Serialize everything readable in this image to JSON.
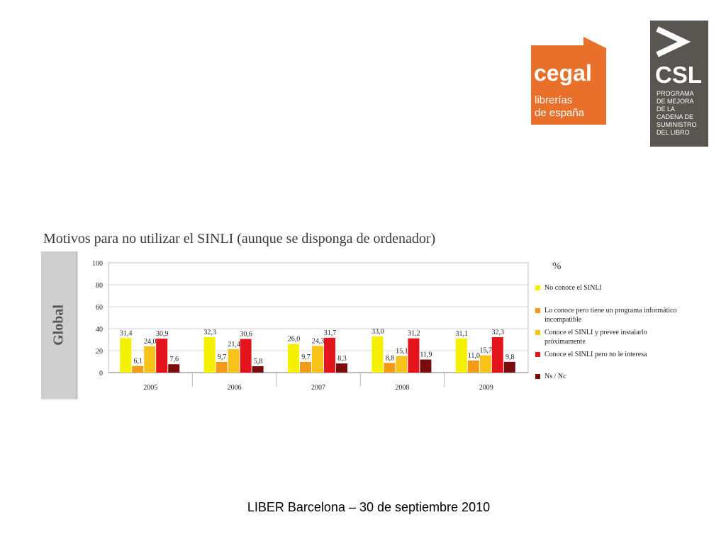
{
  "logos": {
    "cegal": {
      "title": "cegal",
      "line1": "librerías",
      "line2": "de españa",
      "color": "#e8702a"
    },
    "csl": {
      "title": "CSL",
      "lines": [
        "PROGRAMA",
        "DE MEJORA",
        "DE LA",
        "CADENA DE",
        "SUMINISTRO",
        "DEL LIBRO"
      ],
      "color": "#595550"
    }
  },
  "side_panel": {
    "label": "Global"
  },
  "footer": {
    "text": "LIBER Barcelona – 30 de septiembre 2010"
  },
  "chart_data": {
    "type": "bar",
    "title": "Motivos para no utilizar el SINLI (aunque se disponga de ordenador)",
    "unit_label": "%",
    "categories": [
      "2005",
      "2006",
      "2007",
      "2008",
      "2009"
    ],
    "ylim": [
      0,
      100
    ],
    "yticks": [
      0,
      20,
      40,
      60,
      80,
      100
    ],
    "grid": true,
    "legend_position": "right",
    "series": [
      {
        "name": "No conoce el SINLI",
        "color": "#f5ef00",
        "values": [
          31.4,
          32.3,
          26.0,
          33.0,
          31.1
        ],
        "labels": [
          "31,4",
          "32,3",
          "26,0",
          "33,0",
          "31,1"
        ]
      },
      {
        "name": "Lo conoce pero tiene un programa informático incompatible",
        "color": "#f39a16",
        "values": [
          6.1,
          9.7,
          9.7,
          8.8,
          11.0
        ],
        "labels": [
          "6,1",
          "9,7",
          "9,7",
          "8,8",
          "11,0"
        ]
      },
      {
        "name": "Conoce el SINLI y prevee instalarlo próximamente",
        "color": "#f7c21a",
        "values": [
          24.0,
          21.4,
          24.3,
          15.1,
          15.7
        ],
        "labels": [
          "24,0",
          "21,4",
          "24,3",
          "15,1",
          "15,7"
        ]
      },
      {
        "name": "Conoce el SINLI pero no le interesa",
        "color": "#e3141b",
        "values": [
          30.9,
          30.6,
          31.7,
          31.2,
          32.3
        ],
        "labels": [
          "30,9",
          "30,6",
          "31,7",
          "31,2",
          "32,3"
        ]
      },
      {
        "name": "Ns / Nc",
        "color": "#7a0c0c",
        "values": [
          7.6,
          5.8,
          8.3,
          11.9,
          9.8
        ],
        "labels": [
          "7,6",
          "5,8",
          "8,3",
          "11,9",
          "9,8"
        ]
      }
    ]
  }
}
